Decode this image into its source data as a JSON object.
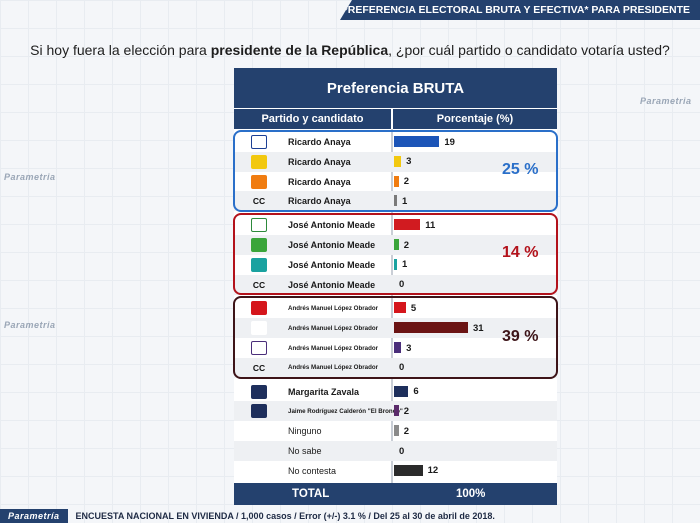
{
  "header": {
    "title": "PREFERENCIA ELECTORAL BRUTA Y EFECTIVA* PARA PRESIDENTE"
  },
  "question": {
    "before": "Si hoy fuera la elección para ",
    "bold": "presidente de la República",
    "after": ", ¿por cuál partido o candidato votaría usted?"
  },
  "watermark": "Parametria",
  "colors": {
    "navy": "#24416e",
    "anaya_group": "#2a6fc9",
    "meade_group": "#b3121b",
    "amlo_group": "#3d1418"
  },
  "chart_data": {
    "type": "bar",
    "title": "Preferencia BRUTA",
    "xlabel": "Partido y candidato",
    "ylabel": "Porcentaje (%)",
    "ylim": [
      0,
      31
    ],
    "rows": [
      {
        "logo": "PAN",
        "logo_icon": "pan-logo-icon",
        "candidate": "Ricardo Anaya",
        "value": 19,
        "color": "#1c55b8"
      },
      {
        "logo": "PRD",
        "logo_icon": "prd-logo-icon",
        "candidate": "Ricardo Anaya",
        "value": 3,
        "color": "#f2c80f"
      },
      {
        "logo": "MC",
        "logo_icon": "mc-logo-icon",
        "candidate": "Ricardo Anaya",
        "value": 2,
        "color": "#f07c10"
      },
      {
        "logo": "CC",
        "logo_icon": "",
        "candidate": "Ricardo Anaya",
        "value": 1,
        "color": "#7a7a7a"
      },
      {
        "logo": "PRI",
        "logo_icon": "pri-logo-icon",
        "candidate": "José Antonio Meade",
        "value": 11,
        "color": "#d11b20"
      },
      {
        "logo": "PVEM",
        "logo_icon": "pvem-logo-icon",
        "candidate": "José Antonio Meade",
        "value": 2,
        "color": "#3aa53a"
      },
      {
        "logo": "NA",
        "logo_icon": "na-logo-icon",
        "candidate": "José Antonio Meade",
        "value": 1,
        "color": "#1aa2a0"
      },
      {
        "logo": "CC",
        "logo_icon": "",
        "candidate": "José Antonio Meade",
        "value": 0,
        "color": "#7a7a7a"
      },
      {
        "logo": "PT",
        "logo_icon": "pt-logo-icon",
        "candidate": "Andrés Manuel López Obrador",
        "value": 5,
        "color": "#d5161c"
      },
      {
        "logo": "MORENA",
        "logo_icon": "morena-logo-icon",
        "candidate": "Andrés Manuel López Obrador",
        "value": 31,
        "color": "#6b1414"
      },
      {
        "logo": "PES",
        "logo_icon": "pes-logo-icon",
        "candidate": "Andrés Manuel López Obrador",
        "value": 3,
        "color": "#4a2e7a"
      },
      {
        "logo": "CC",
        "logo_icon": "",
        "candidate": "Andrés Manuel López Obrador",
        "value": 0,
        "color": "#7a7a7a"
      },
      {
        "logo": "IND",
        "logo_icon": "independent-logo-icon",
        "candidate": "Margarita Zavala",
        "value": 6,
        "color": "#1e2f5c"
      },
      {
        "logo": "IND",
        "logo_icon": "independent-logo-icon",
        "candidate": "Jaime Rodríguez Calderón \"El Bronco\"",
        "value": 2,
        "color": "#5a2a6a"
      },
      {
        "logo": "",
        "logo_icon": "",
        "candidate": "Ninguno",
        "value": 2,
        "color": "#8a8a8a"
      },
      {
        "logo": "",
        "logo_icon": "",
        "candidate": "No sabe",
        "value": 0,
        "color": "#8a8a8a"
      },
      {
        "logo": "",
        "logo_icon": "",
        "candidate": "No contesta",
        "value": 12,
        "color": "#2b2b2b"
      }
    ],
    "groups": [
      {
        "candidate": "Ricardo Anaya",
        "total": "25 %",
        "first_row": 0,
        "last_row": 3
      },
      {
        "candidate": "José Antonio Meade",
        "total": "14 %",
        "first_row": 4,
        "last_row": 7
      },
      {
        "candidate": "Andrés Manuel López Obrador",
        "total": "39 %",
        "first_row": 8,
        "last_row": 11
      }
    ],
    "total_row": {
      "label": "TOTAL",
      "value": "100%"
    }
  },
  "footer": {
    "brand": "Parametría",
    "note": "ENCUESTA NACIONAL EN VIVIENDA / 1,000 casos / Error (+/-) 3.1 % / Del 25 al 30 de abril de 2018."
  }
}
